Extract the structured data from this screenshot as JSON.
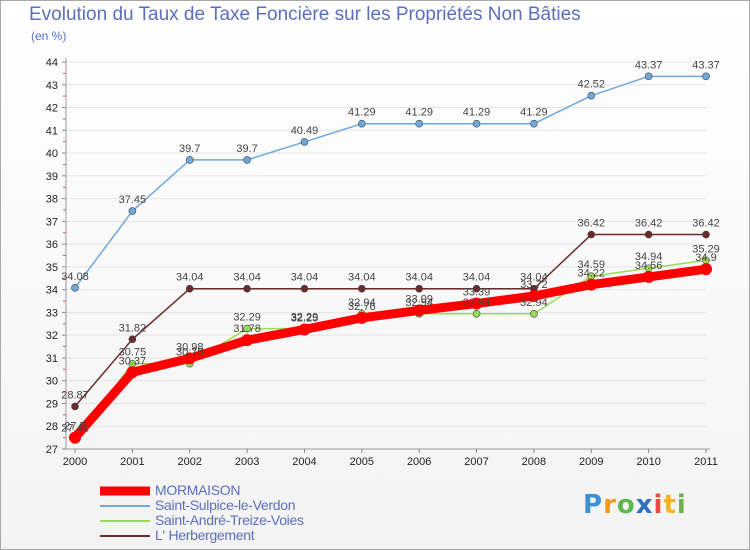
{
  "title": "Evolution du Taux de Taxe Foncière sur les Propriétés Non Bâties",
  "unit_label": "(en %)",
  "logo": {
    "letters": [
      "P",
      "r",
      "o",
      "x",
      "i",
      "t",
      "i"
    ],
    "colors": [
      "#3d8fd6",
      "#f29b1f",
      "#5cb84a",
      "#2e6fc0",
      "#e94b3c",
      "#f5b21f",
      "#6ab04c"
    ]
  },
  "chart_data": {
    "type": "line",
    "title": "Evolution du Taux de Taxe Foncière sur les Propriétés Non Bâties",
    "ylabel": "(en %)",
    "ylim": [
      27,
      44
    ],
    "yticks": [
      27,
      28,
      29,
      30,
      31,
      32,
      33,
      34,
      35,
      36,
      37,
      38,
      39,
      40,
      41,
      42,
      43,
      44
    ],
    "categories": [
      "2000",
      "2001",
      "2002",
      "2003",
      "2004",
      "2005",
      "2006",
      "2007",
      "2008",
      "2009",
      "2010",
      "2011"
    ],
    "series": [
      {
        "name": "L' Herbergement",
        "color": "#6b2b2b",
        "values": [
          28.87,
          31.82,
          34.04,
          34.04,
          34.04,
          34.04,
          34.04,
          34.04,
          34.04,
          36.42,
          36.42,
          36.42
        ],
        "labels": [
          "28.87",
          "31.82",
          "34.04",
          "34.04",
          "34.04",
          "34.04",
          "34.04",
          "34.04",
          "34.04",
          "36.42",
          "36.42",
          "36.42"
        ]
      },
      {
        "name": "Saint-André-Treize-Voies",
        "color": "#99dd55",
        "values": [
          27.41,
          30.75,
          30.75,
          32.29,
          32.29,
          32.94,
          32.94,
          32.94,
          32.94,
          34.59,
          34.94,
          35.29
        ],
        "labels": [
          "27.41",
          "30.75",
          "30.75",
          "32.29",
          "32.29",
          "32.94",
          "32.94",
          "32.94",
          "32.94",
          "34.59",
          "34.94",
          "35.29"
        ]
      },
      {
        "name": "MORMAISON",
        "color": "#ff0000",
        "values": [
          27.5,
          30.37,
          30.98,
          31.78,
          32.25,
          32.76,
          33.09,
          33.39,
          33.72,
          34.22,
          34.56,
          34.9
        ],
        "labels": [
          "27.5",
          "30.37",
          "30.98",
          "31.78",
          "32.25",
          "32.76",
          "33.09",
          "33.39",
          "33.72",
          "34.22",
          "34.56",
          "34.9"
        ]
      },
      {
        "name": "Saint-Sulpice-le-Verdon",
        "color": "#6fa8dc",
        "values": [
          34.08,
          37.45,
          39.7,
          39.7,
          40.49,
          41.29,
          41.29,
          41.29,
          41.29,
          42.52,
          43.37,
          43.37
        ],
        "labels": [
          "34.08",
          "37.45",
          "39.7",
          "39.7",
          "40.49",
          "41.29",
          "41.29",
          "41.29",
          "41.29",
          "42.52",
          "43.37",
          "43.37"
        ]
      }
    ]
  },
  "legend": [
    {
      "name": "MORMAISON",
      "color": "#ff0000",
      "weight": "thick"
    },
    {
      "name": "Saint-Sulpice-le-Verdon",
      "color": "#6fa8dc",
      "weight": "thin"
    },
    {
      "name": "Saint-André-Treize-Voies",
      "color": "#99dd55",
      "weight": "thin"
    },
    {
      "name": "L' Herbergement",
      "color": "#6b2b2b",
      "weight": "thin"
    }
  ]
}
